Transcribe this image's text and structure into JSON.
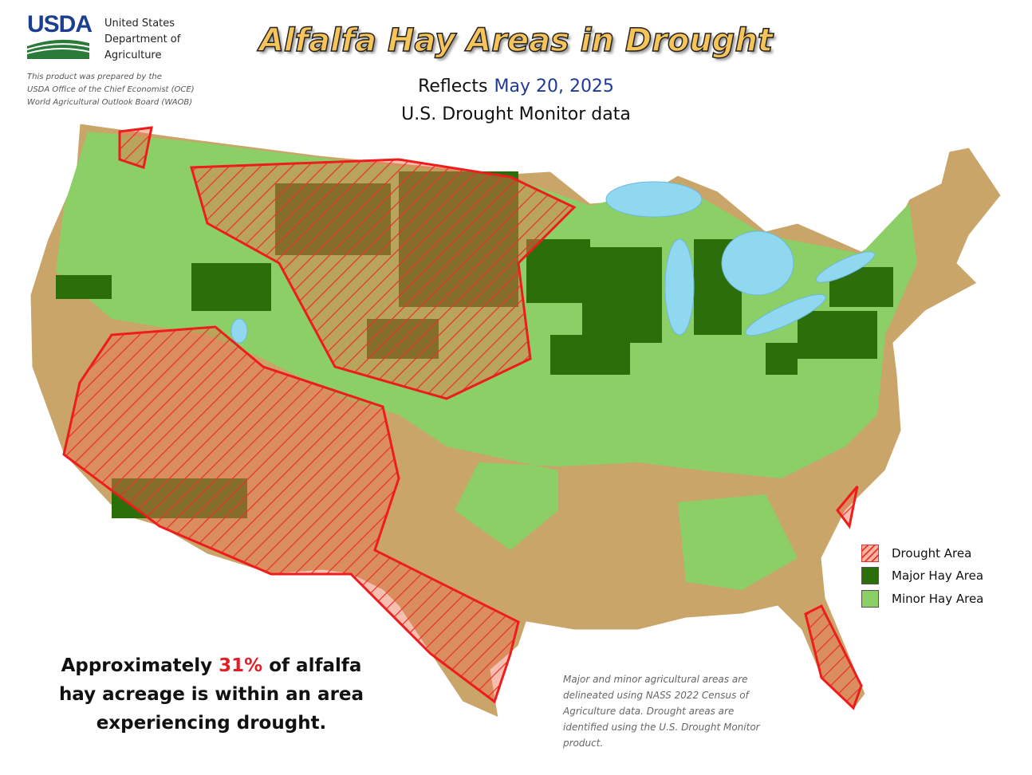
{
  "header": {
    "logo": "USDA",
    "agency": [
      "United States",
      "Department of",
      "Agriculture"
    ],
    "credit": [
      "This product was prepared by the",
      "USDA Office of the Chief Economist (OCE)",
      "World Agricultural Outlook Board (WAOB)"
    ]
  },
  "title": "Alfalfa Hay Areas in Drought",
  "subtitle": {
    "prefix": "Reflects",
    "date": "May 20, 2025",
    "source": "U.S. Drought Monitor data"
  },
  "legend": [
    {
      "label": "Drought Area"
    },
    {
      "label": "Major Hay Area"
    },
    {
      "label": "Minor Hay Area"
    }
  ],
  "summary": {
    "before": "Approximately",
    "share": "31%",
    "after": "of alfalfa hay acreage is within an area experiencing drought."
  },
  "note": "Major and minor agricultural areas are delineated using NASS 2022 Census of Agriculture data.  Drought areas are identified using the U.S. Drought Monitor product."
}
